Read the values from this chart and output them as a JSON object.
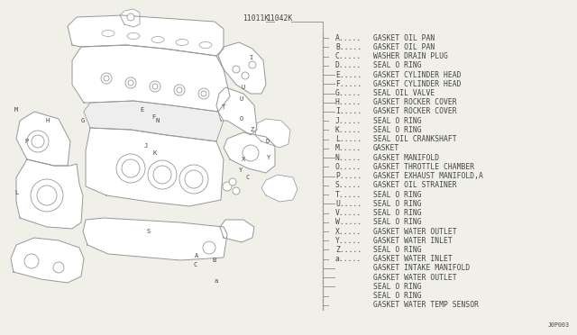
{
  "background_color": "#f0efe8",
  "part_number_left": "11011K",
  "part_number_right": "11042K",
  "footer": "J0P003",
  "parts": [
    {
      "letter": "A",
      "long_tick": false,
      "description": "GASKET OIL PAN"
    },
    {
      "letter": "B",
      "long_tick": false,
      "description": "GASKET OIL PAN"
    },
    {
      "letter": "C",
      "long_tick": false,
      "description": "WASHER DRAIN PLUG"
    },
    {
      "letter": "D",
      "long_tick": false,
      "description": "SEAL O RING"
    },
    {
      "letter": "E",
      "long_tick": true,
      "description": "GASKET CYLINDER HEAD"
    },
    {
      "letter": "F",
      "long_tick": true,
      "description": "GASKET CYLINDER HEAD"
    },
    {
      "letter": "G",
      "long_tick": true,
      "description": "SEAL OIL VALVE"
    },
    {
      "letter": "H",
      "long_tick": true,
      "description": "GASKET ROCKER COVER"
    },
    {
      "letter": "I",
      "long_tick": true,
      "description": "GASKET ROCKER COVER"
    },
    {
      "letter": "J",
      "long_tick": false,
      "description": "SEAL O RING"
    },
    {
      "letter": "K",
      "long_tick": false,
      "description": "SEAL O RING"
    },
    {
      "letter": "L",
      "long_tick": false,
      "description": "SEAL OIL CRANKSHAFT"
    },
    {
      "letter": "M",
      "long_tick": false,
      "description": "GASKET"
    },
    {
      "letter": "N",
      "long_tick": true,
      "description": "GASKET MANIFOLD"
    },
    {
      "letter": "O",
      "long_tick": false,
      "description": "GASKET THROTTLE CHAMBER"
    },
    {
      "letter": "P",
      "long_tick": true,
      "description": "GASKET EXHAUST MANIFOLD,A"
    },
    {
      "letter": "S",
      "long_tick": false,
      "description": "GASKET OIL STRAINER"
    },
    {
      "letter": "T",
      "long_tick": false,
      "description": "SEAL O RING"
    },
    {
      "letter": "U",
      "long_tick": true,
      "description": "SEAL O RING"
    },
    {
      "letter": "V",
      "long_tick": false,
      "description": "SEAL O RING"
    },
    {
      "letter": "W",
      "long_tick": false,
      "description": "SEAL O RING"
    },
    {
      "letter": "X",
      "long_tick": false,
      "description": "GASKET WATER OUTLET"
    },
    {
      "letter": "Y",
      "long_tick": false,
      "description": "GASKET WATER INLET"
    },
    {
      "letter": "Z",
      "long_tick": false,
      "description": "SEAL O RING"
    },
    {
      "letter": "a",
      "long_tick": false,
      "description": "GASKET WATER INLET"
    },
    {
      "letter": "",
      "long_tick": true,
      "description": "GASKET INTAKE MANIFOLD"
    },
    {
      "letter": "",
      "long_tick": true,
      "description": "GASKET WATER OUTLET"
    },
    {
      "letter": "",
      "long_tick": true,
      "description": "SEAL O RING"
    },
    {
      "letter": "",
      "long_tick": false,
      "description": "SEAL O RING"
    },
    {
      "letter": "",
      "long_tick": false,
      "description": "GASKET WATER TEMP SENSOR"
    }
  ],
  "text_color": "#444444",
  "line_color": "#999999",
  "font_size": 5.8
}
